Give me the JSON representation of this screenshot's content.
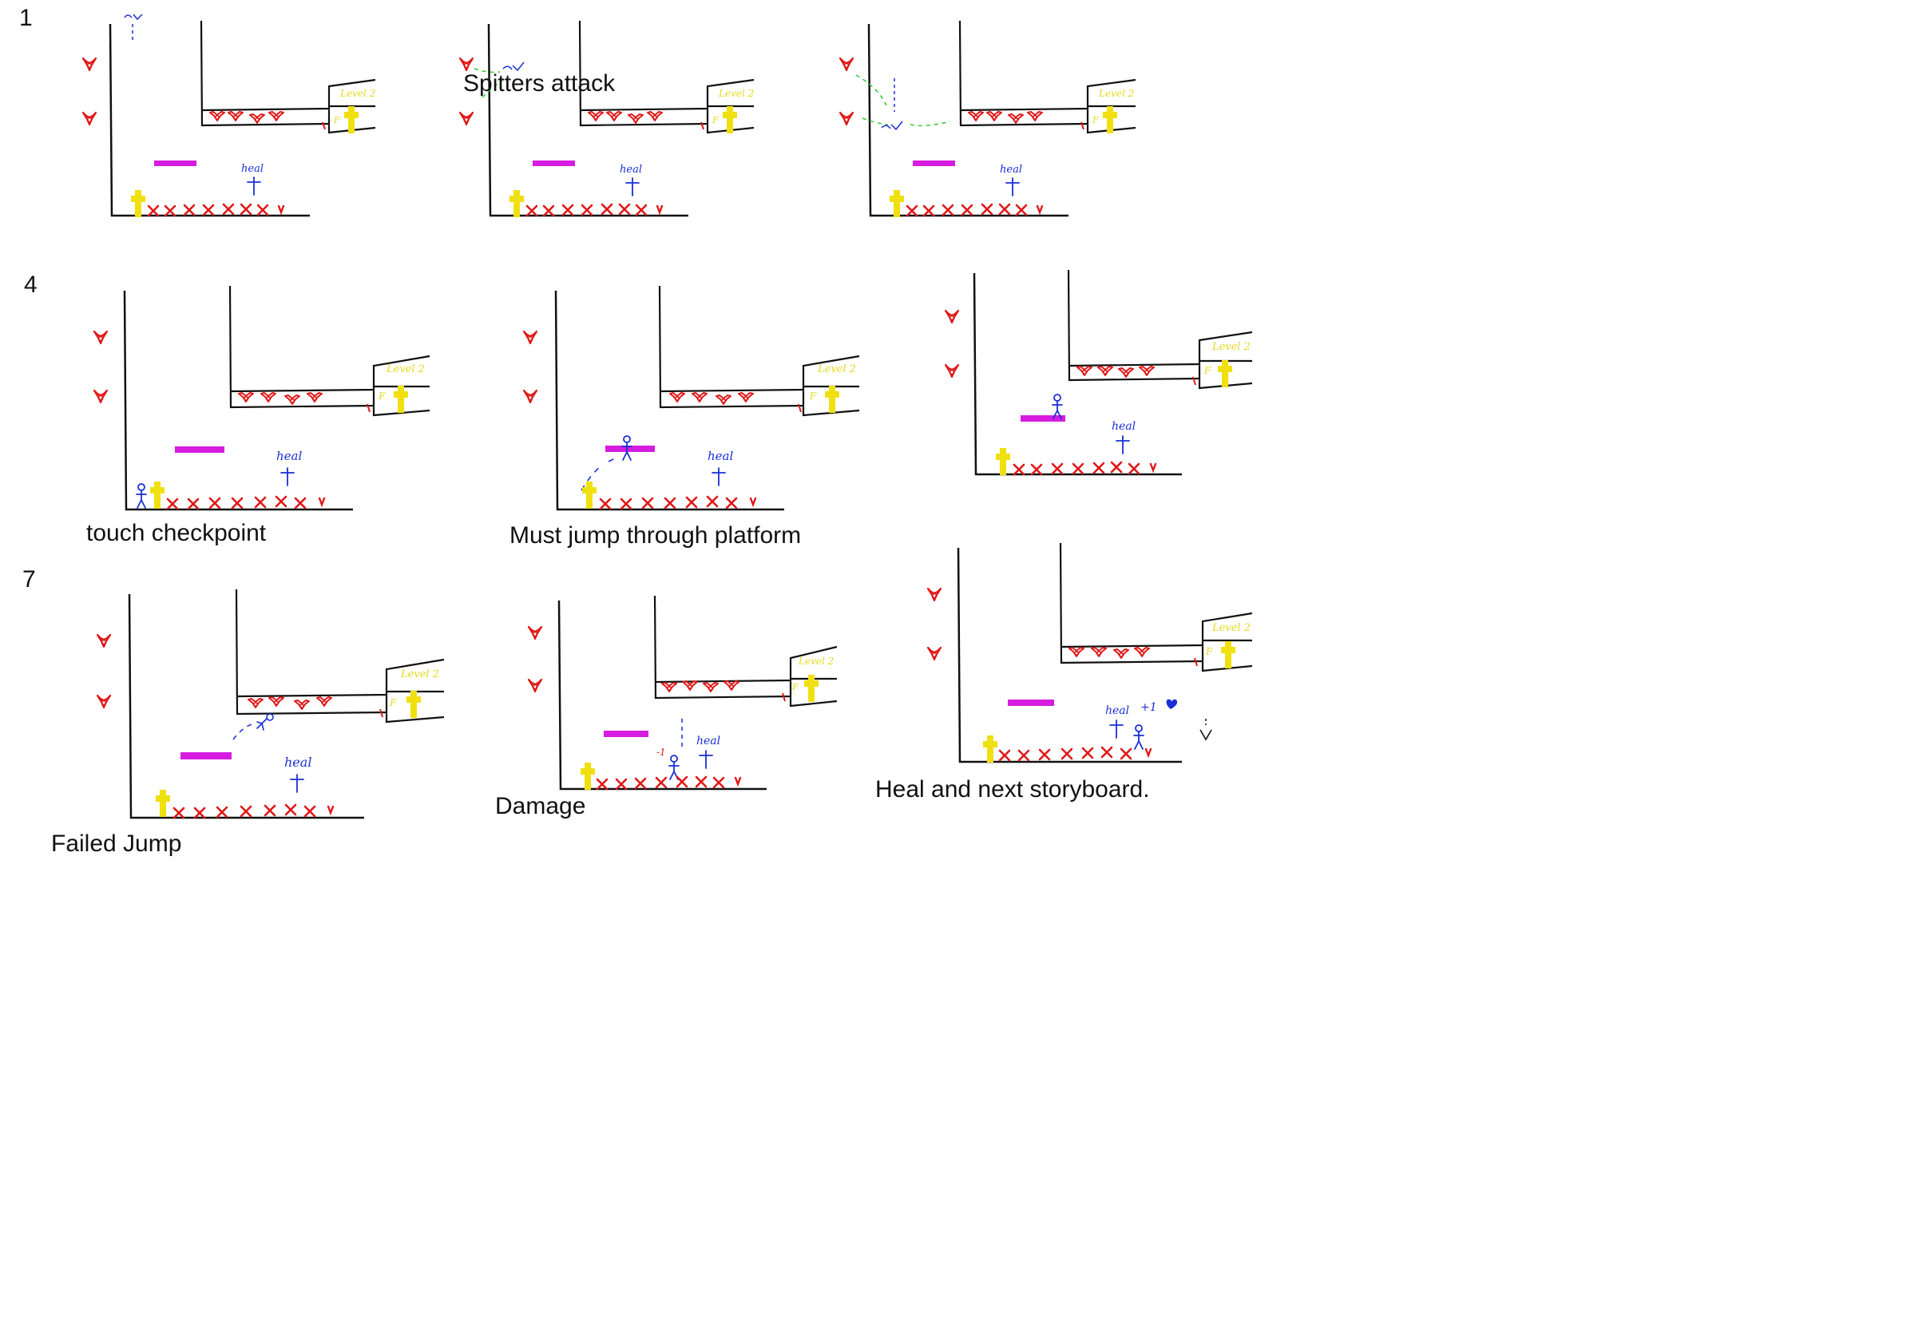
{
  "storyboard": {
    "frame_numbers": [
      "1",
      "4",
      "7"
    ],
    "captions": {
      "frame2": "Spitters attack",
      "frame4": "touch checkpoint",
      "frame5": "Must jump through platform",
      "frame7": "Failed Jump",
      "frame8": "Damage",
      "frame9": "Heal and next storyboard."
    },
    "sketch_labels": {
      "heal": "heal",
      "level2": "Level 2",
      "key": "F",
      "damage": "-1",
      "heal_bonus": "+1"
    },
    "colors": {
      "walls": "#111111",
      "spitter": "#e01818",
      "spikes": "#e01818",
      "player": "#1a2fd6",
      "platform": "#d61ce0",
      "checkpoint": "#f0e010",
      "spit": "#32c832",
      "level2_text": "#e8d820"
    }
  }
}
